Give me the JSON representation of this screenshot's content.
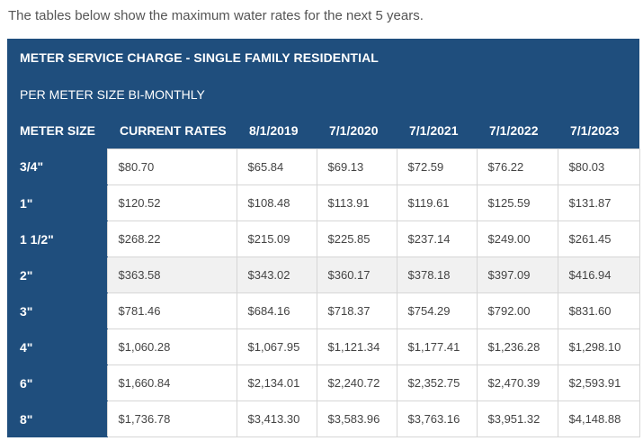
{
  "intro": "The tables below show the maximum water rates for the next 5 years.",
  "table": {
    "title": "METER SERVICE CHARGE - SINGLE FAMILY RESIDENTIAL",
    "subtitle": "PER METER SIZE BI-MONTHLY",
    "columns": [
      "METER SIZE",
      "CURRENT RATES",
      "8/1/2019",
      "7/1/2020",
      "7/1/2021",
      "7/1/2022",
      "7/1/2023"
    ],
    "rows": [
      [
        "3/4\"",
        "$80.70",
        "$65.84",
        "$69.13",
        "$72.59",
        "$76.22",
        "$80.03"
      ],
      [
        "1\"",
        "$120.52",
        "$108.48",
        "$113.91",
        "$119.61",
        "$125.59",
        "$131.87"
      ],
      [
        "1 1/2\"",
        "$268.22",
        "$215.09",
        "$225.85",
        "$237.14",
        "$249.00",
        "$261.45"
      ],
      [
        "2\"",
        "$363.58",
        "$343.02",
        "$360.17",
        "$378.18",
        "$397.09",
        "$416.94"
      ],
      [
        "3\"",
        "$781.46",
        "$684.16",
        "$718.37",
        "$754.29",
        "$792.00",
        "$831.60"
      ],
      [
        "4\"",
        "$1,060.28",
        "$1,067.95",
        "$1,121.34",
        "$1,177.41",
        "$1,236.28",
        "$1,298.10"
      ],
      [
        "6\"",
        "$1,660.84",
        "$2,134.01",
        "$2,240.72",
        "$2,352.75",
        "$2,470.39",
        "$2,593.91"
      ],
      [
        "8\"",
        "$1,736.78",
        "$3,413.30",
        "$3,583.96",
        "$3,763.16",
        "$3,951.32",
        "$4,148.88"
      ]
    ]
  },
  "colors": {
    "header_bg": "#1f4e7d",
    "header_text": "#ffffff",
    "highlight_row_bg": "#f1f1f1"
  }
}
